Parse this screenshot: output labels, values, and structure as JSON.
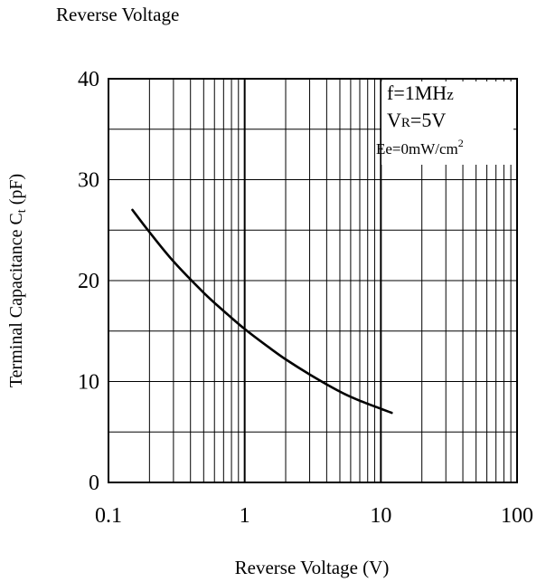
{
  "caption": "Reverse Voltage",
  "chart_data": {
    "type": "line",
    "title": "",
    "xlabel": "Reverse Voltage (V)",
    "ylabel": "Terminal Capacitance C",
    "ylabel_subscript": "t",
    "ylabel_unit": " (pF)",
    "x_scale": "log",
    "xlim": [
      0.1,
      100
    ],
    "ylim": [
      0,
      40
    ],
    "x_ticks": [
      0.1,
      1,
      10,
      100
    ],
    "x_tick_labels": [
      "0.1",
      "1",
      "10",
      "100"
    ],
    "y_ticks": [
      0,
      10,
      20,
      30,
      40
    ],
    "y_tick_labels": [
      "0",
      "10",
      "20",
      "30",
      "40"
    ],
    "grid": true,
    "legend": "none",
    "conditions": {
      "freq": "f=1MH",
      "freq_z": "z",
      "vr_main": "V",
      "vr_sub": "R",
      "vr_value": "=5V",
      "ee": "Ee=0mW/cm",
      "ee_sup": "2"
    },
    "series": [
      {
        "x": [
          0.15,
          0.2,
          0.3,
          0.5,
          0.7,
          1.0,
          1.5,
          2.0,
          3.0,
          5.0,
          7.0,
          10.0,
          12.0
        ],
        "y": [
          27.0,
          24.8,
          21.9,
          18.8,
          17.0,
          15.2,
          13.4,
          12.2,
          10.7,
          9.0,
          8.1,
          7.3,
          6.9
        ]
      }
    ]
  }
}
